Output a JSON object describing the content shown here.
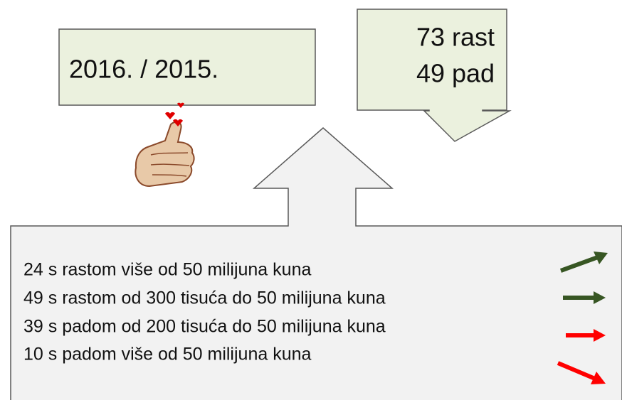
{
  "period_box": {
    "text": "2016. / 2015."
  },
  "summary_callout": {
    "lines": [
      "73 rast",
      "49 pad"
    ]
  },
  "groups": [
    "24 s rastom više od 50 milijuna kuna",
    "49 s rastom od 300 tisuća do 50 milijuna kuna",
    "39 s padom od 200 tisuća do 50 milijuna kuna",
    "10 s padom više od 50 milijuna kuna"
  ]
}
